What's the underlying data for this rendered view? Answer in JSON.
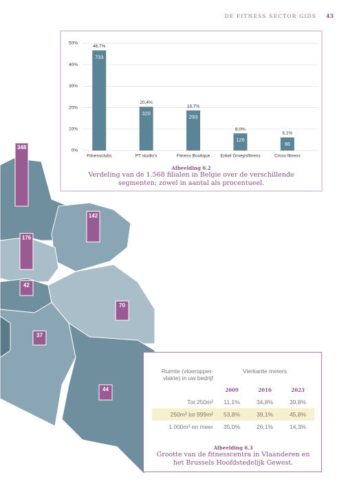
{
  "header": {
    "title": "DE FITNESS SECTOR GIDS",
    "page": "43"
  },
  "chart_data": {
    "type": "bar",
    "categories": [
      "Fitnessclubs",
      "PT studio's",
      "Fitness Boutique",
      "Enkel Groepsfitness",
      "Cross fitness"
    ],
    "values": [
      46.7,
      20.4,
      18.7,
      8.0,
      6.1
    ],
    "value_labels": [
      "46,7%",
      "20,4%",
      "18,7%",
      "8,0%",
      "6,1%"
    ],
    "counts": [
      733,
      320,
      293,
      126,
      96
    ],
    "color": "#5b8597",
    "ylim": [
      0,
      50
    ],
    "yticks": [
      {
        "value": 0,
        "label": "0%"
      },
      {
        "value": 10,
        "label": "10%"
      },
      {
        "value": 20,
        "label": "20%"
      },
      {
        "value": 30,
        "label": "30%"
      },
      {
        "value": 40,
        "label": "40%"
      },
      {
        "value": 50,
        "label": "50%"
      }
    ],
    "grid": true,
    "caption_label": "Afbeelding 6.2",
    "caption": "Verdeling van de 1.568 filialen in Belgie over de verschillende segmenten; zowel in aantal als procentueel."
  },
  "map": {
    "values": [
      348,
      142,
      176,
      42,
      70,
      37,
      44
    ]
  },
  "table": {
    "header": "Ruimte (vloeropper- vlakte) in uw bedrijf",
    "unit_header": "Vierkante meters",
    "years": [
      "2009",
      "2016",
      "2023"
    ],
    "rows": [
      [
        "Tot 250m²",
        "11,1%",
        "34,8%",
        "39,8%"
      ],
      [
        "250m² tot 999m²",
        "53,8%",
        "39,1%",
        "45,8%"
      ],
      [
        "1.000m² en meer",
        "35,0%",
        "26,1%",
        "14,3%"
      ]
    ],
    "caption_label": "Afbeelding 6.3",
    "caption": "Grootte van de fitnesscentra in Vlaanderen en het Brussels Hoofdstedelijk Gewest."
  }
}
